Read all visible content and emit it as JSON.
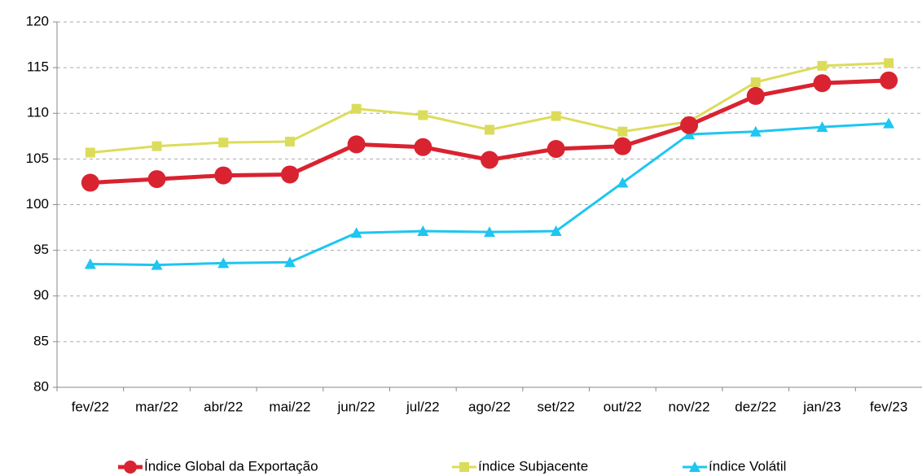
{
  "chart_data": {
    "type": "line",
    "categories": [
      "fev/22",
      "mar/22",
      "abr/22",
      "mai/22",
      "jun/22",
      "jul/22",
      "ago/22",
      "set/22",
      "out/22",
      "nov/22",
      "dez/22",
      "jan/23",
      "fev/23"
    ],
    "series": [
      {
        "name": "Índice Global da Exportação",
        "color": "#d92330",
        "marker": "circle",
        "values": [
          102.4,
          102.8,
          103.2,
          103.3,
          106.6,
          106.3,
          104.9,
          106.1,
          106.4,
          108.7,
          111.9,
          113.3,
          113.6
        ]
      },
      {
        "name": "índice Subjacente",
        "color": "#dcdc5c",
        "marker": "square",
        "values": [
          105.7,
          106.4,
          106.8,
          106.9,
          110.5,
          109.8,
          108.2,
          109.7,
          108.0,
          109.1,
          113.4,
          115.2,
          115.5
        ]
      },
      {
        "name": "índice Volátil",
        "color": "#1ec6f0",
        "marker": "triangle",
        "values": [
          93.5,
          93.4,
          93.6,
          93.7,
          96.9,
          97.1,
          97.0,
          97.1,
          102.4,
          107.7,
          108.0,
          108.5,
          108.9
        ]
      }
    ],
    "ylim": [
      80,
      120
    ],
    "yticks": [
      80,
      85,
      90,
      95,
      100,
      105,
      110,
      115,
      120
    ],
    "grid": true
  }
}
